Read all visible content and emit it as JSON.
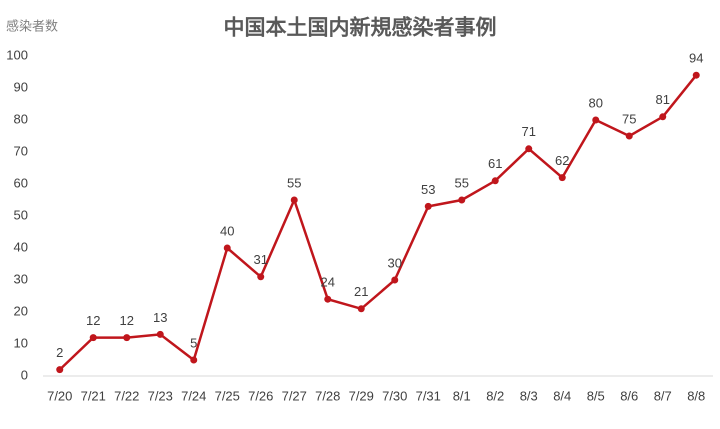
{
  "chart_data": {
    "type": "line",
    "title": "中国本土国内新規感染者事例",
    "y_label": "感染者数",
    "categories": [
      "7/20",
      "7/21",
      "7/22",
      "7/23",
      "7/24",
      "7/25",
      "7/26",
      "7/27",
      "7/28",
      "7/29",
      "7/30",
      "7/31",
      "8/1",
      "8/2",
      "8/3",
      "8/4",
      "8/5",
      "8/6",
      "8/7",
      "8/8"
    ],
    "values": [
      2,
      12,
      12,
      13,
      5,
      40,
      31,
      55,
      24,
      21,
      30,
      53,
      55,
      61,
      71,
      62,
      80,
      75,
      81,
      94
    ],
    "color": "#c0161c",
    "ylim": [
      0,
      100
    ],
    "yticks": [
      0,
      10,
      20,
      30,
      40,
      50,
      60,
      70,
      80,
      90,
      100
    ],
    "grid": false
  }
}
